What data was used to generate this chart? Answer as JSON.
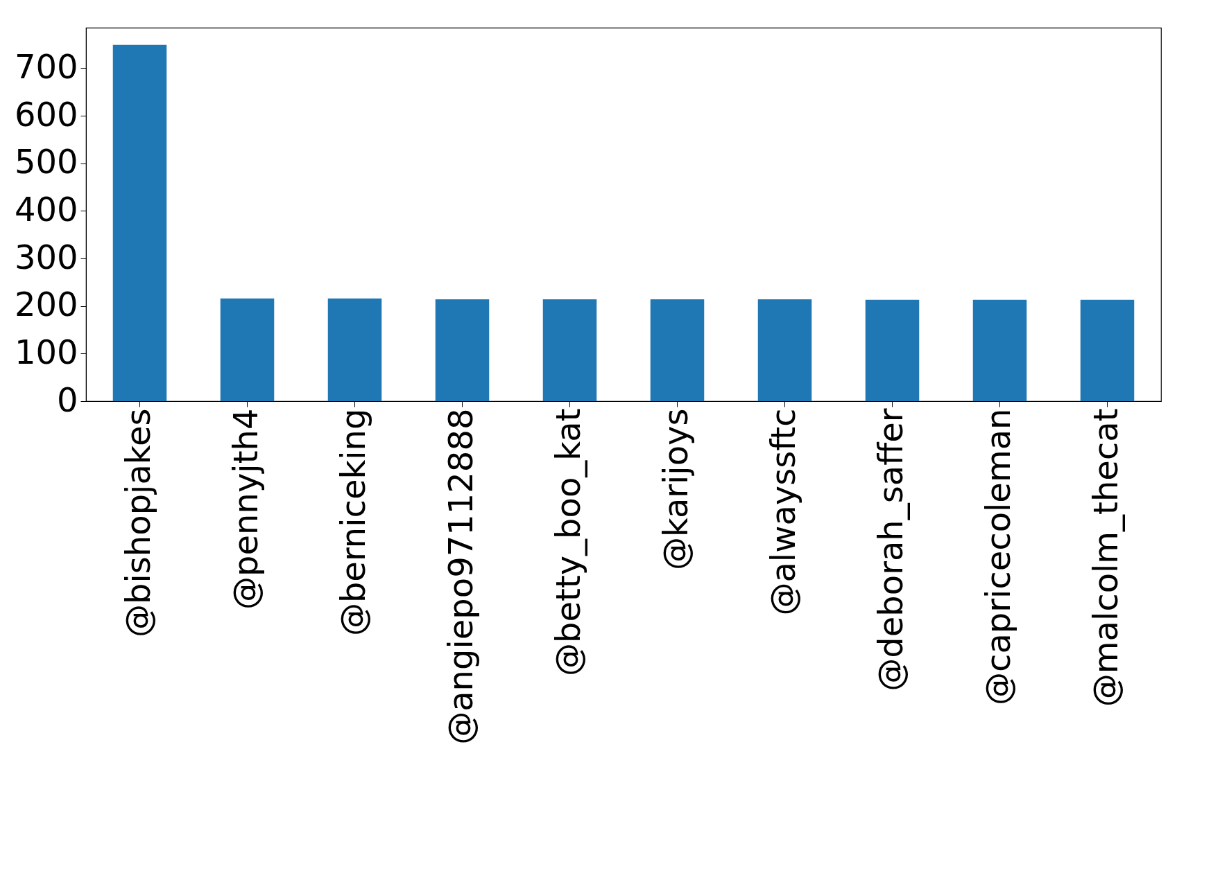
{
  "chart_data": {
    "type": "bar",
    "categories": [
      "@bishopjakes",
      "@pennyjth4",
      "@berniceking",
      "@angiepo97112888",
      "@betty_boo_kat",
      "@karijoys",
      "@alwayssftc",
      "@deborah_saffer",
      "@capricecoleman",
      "@malcolm_thecat"
    ],
    "values": [
      749,
      216,
      216,
      214,
      214,
      214,
      214,
      213,
      213,
      213
    ],
    "color": "#1f77b4",
    "ylim": [
      0,
      785
    ],
    "yticks": [
      0,
      100,
      200,
      300,
      400,
      500,
      600,
      700
    ],
    "grid": false
  }
}
